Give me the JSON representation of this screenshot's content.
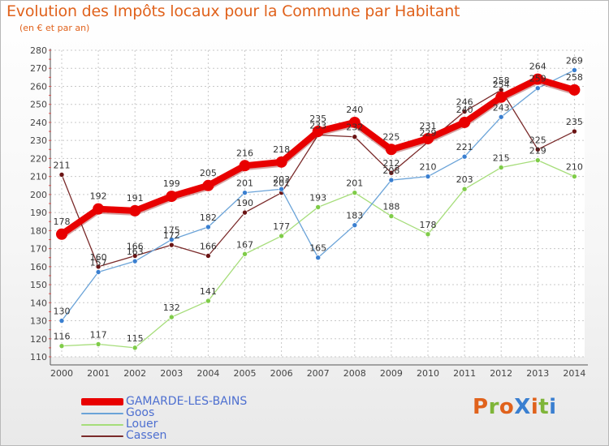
{
  "title": "Evolution des Impôts locaux pour la Commune par Habitant",
  "subtitle": "(en € et par an)",
  "logo": {
    "text": "ProXiti",
    "colors": [
      "#e0621c",
      "#7fb539",
      "#e0621c",
      "#3a7fd0",
      "#e0621c",
      "#7fb539",
      "#3a7fd0"
    ]
  },
  "chart_data": {
    "type": "line",
    "title": "Evolution des Impôts locaux pour la Commune par Habitant",
    "subtitle": "(en € et par an)",
    "xlabel": "",
    "ylabel": "",
    "x": [
      "2000",
      "2001",
      "2002",
      "2003",
      "2004",
      "2005",
      "2006",
      "2007",
      "2008",
      "2009",
      "2010",
      "2011",
      "2012",
      "2013",
      "2014"
    ],
    "ylim": [
      110,
      280
    ],
    "yticks": [
      110,
      120,
      130,
      140,
      150,
      160,
      170,
      180,
      190,
      200,
      210,
      220,
      230,
      240,
      250,
      260,
      270,
      280
    ],
    "grid": true,
    "legend_position": "bottom-left",
    "series": [
      {
        "name": "GAMARDE-LES-BAINS",
        "color": "#e80000",
        "marker": "#e80000",
        "width": 8,
        "values": [
          178,
          192,
          191,
          199,
          205,
          216,
          218,
          235,
          240,
          225,
          231,
          240,
          254,
          264,
          258
        ]
      },
      {
        "name": "Goos",
        "color": "#6aa3d8",
        "marker": "#3a7fd0",
        "width": 1.3,
        "values": [
          130,
          157,
          163,
          175,
          182,
          201,
          203,
          165,
          183,
          208,
          210,
          221,
          243,
          259,
          269
        ]
      },
      {
        "name": "Louer",
        "color": "#a6dd7a",
        "marker": "#7fcc48",
        "width": 1.3,
        "values": [
          116,
          117,
          115,
          132,
          141,
          167,
          177,
          193,
          201,
          188,
          178,
          203,
          215,
          219,
          210
        ]
      },
      {
        "name": "Cassen",
        "color": "#7a2a2a",
        "marker": "#6b1414",
        "width": 1.3,
        "values": [
          211,
          160,
          166,
          172,
          166,
          190,
          201,
          233,
          232,
          212,
          229,
          246,
          258,
          225,
          235
        ]
      }
    ],
    "point_labels": [
      {
        "series": 0,
        "labels": [
          "178",
          "192",
          "191",
          "199",
          "205",
          "216",
          "218",
          "235",
          "240",
          "225",
          "231",
          "240",
          "254",
          "264",
          "258"
        ]
      },
      {
        "series": 1,
        "labels": [
          "130",
          "157",
          "163",
          "175",
          "182",
          "201",
          "203",
          "165",
          "183",
          "208",
          "210",
          "221",
          "243",
          "259",
          "269"
        ]
      },
      {
        "series": 2,
        "labels": [
          "116",
          "117",
          "115",
          "132",
          "141",
          "167",
          "177",
          "193",
          "201",
          "188",
          "178",
          "203",
          "215",
          "219",
          "210"
        ]
      },
      {
        "series": 3,
        "labels": [
          "211",
          "160",
          "166",
          "172",
          "166",
          "190",
          "201",
          "233",
          "232",
          "212",
          "229",
          "246",
          "258",
          "225",
          "235"
        ]
      }
    ]
  }
}
